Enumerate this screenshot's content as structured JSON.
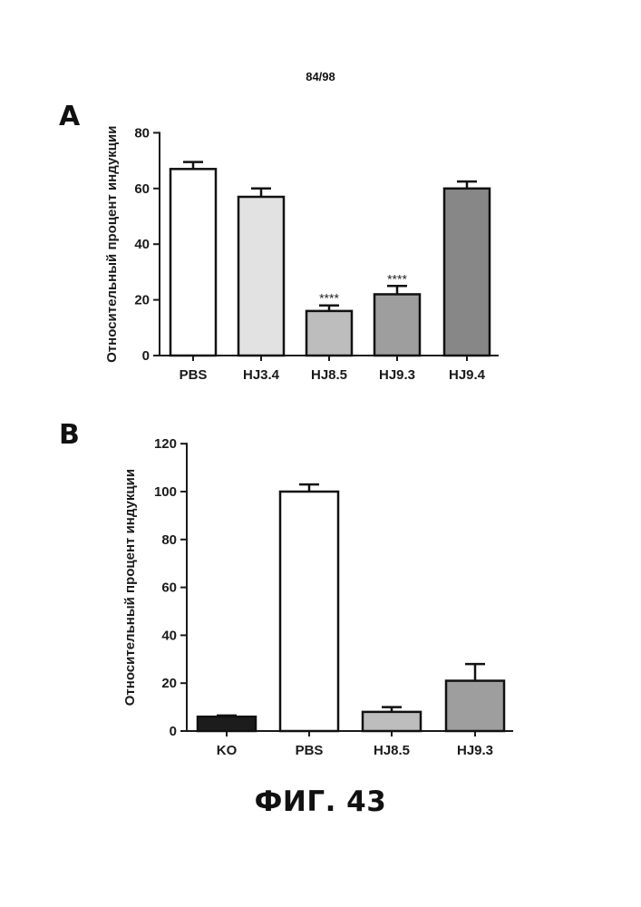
{
  "page_number": "84/98",
  "figure_title": "ФИГ. 43",
  "chart_data": [
    {
      "type": "bar",
      "panel": "A",
      "title": "",
      "xlabel": "",
      "ylabel": "Относительный процент индукции",
      "ylim": [
        0,
        80
      ],
      "yticks": [
        0,
        20,
        40,
        60,
        80
      ],
      "categories": [
        "PBS",
        "HJ3.4",
        "HJ8.5",
        "HJ9.3",
        "HJ9.4"
      ],
      "values": [
        67,
        57,
        16,
        22,
        60
      ],
      "errors": [
        2.5,
        3,
        2,
        3,
        2.5
      ],
      "annotations": [
        "",
        "",
        "****",
        "****",
        ""
      ],
      "colors": [
        "#ffffff",
        "#e2e2e2",
        "#bdbdbd",
        "#9e9e9e",
        "#878787"
      ]
    },
    {
      "type": "bar",
      "panel": "B",
      "title": "",
      "xlabel": "",
      "ylabel": "Относительный процент индукции",
      "ylim": [
        0,
        120
      ],
      "yticks": [
        0,
        20,
        40,
        60,
        80,
        100,
        120
      ],
      "categories": [
        "KO",
        "PBS",
        "HJ8.5",
        "HJ9.3"
      ],
      "values": [
        6,
        100,
        8,
        21
      ],
      "errors": [
        0.5,
        3,
        2,
        7
      ],
      "annotations": [
        "",
        "",
        "",
        ""
      ],
      "colors": [
        "#1c1c1c",
        "#ffffff",
        "#bdbdbd",
        "#9e9e9e"
      ]
    }
  ]
}
